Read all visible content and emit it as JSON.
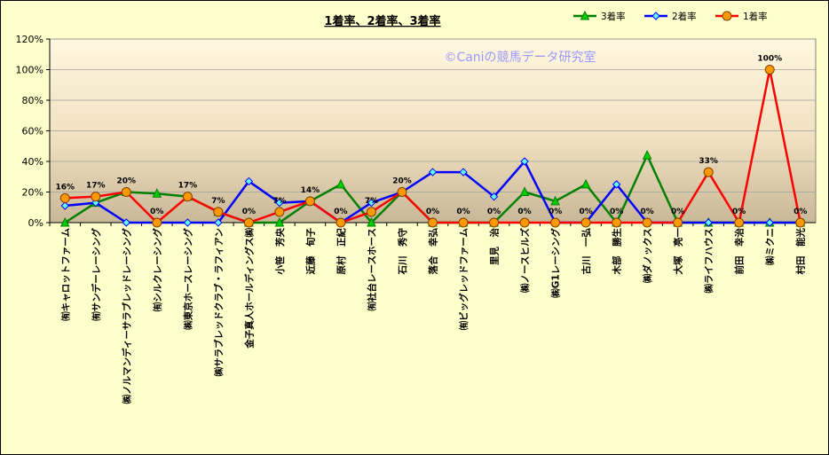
{
  "chart_data": {
    "type": "line",
    "title": "1着率、2着率、3着率",
    "watermark": "©Caniの競馬データ研究室",
    "ylim": [
      0,
      120
    ],
    "yticks": [
      0,
      20,
      40,
      60,
      80,
      100,
      120
    ],
    "ytick_suffix": "%",
    "grid": true,
    "legend_position": "top-right",
    "categories": [
      "㈲キャロットファーム",
      "㈲サンデーレーシング",
      "㈱ノルマンディーサラブレッドレーシング",
      "㈲シルクレーシング",
      "㈱東京ホースレーシング",
      "㈱サラブレッドクラブ・ラフィアン",
      "金子真人ホールディングス㈱",
      "小笹　芳央",
      "近藤　旬子",
      "原村　正紀",
      "㈲社台レースホース",
      "石川　秀守",
      "落合　幸弘",
      "㈲ビッグレッドファーム",
      "里見　治",
      "㈱ノースヒルズ",
      "㈱G1レーシング",
      "古川　一弘",
      "木部　勝生",
      "㈱ダノックス",
      "大塚　亮一",
      "㈱ライフハウス",
      "前田　幸治",
      "㈱ミクニ",
      "村田　能光"
    ],
    "series": [
      {
        "name": "3着率",
        "color": "#008000",
        "marker": "triangle",
        "marker_fill": "#00cc00",
        "values": [
          0,
          13,
          20,
          19,
          17,
          7,
          0,
          0,
          14,
          25,
          0,
          20,
          0,
          0,
          0,
          20,
          14,
          25,
          0,
          44,
          0,
          0,
          0,
          0,
          0
        ]
      },
      {
        "name": "2着率",
        "color": "#0000ff",
        "marker": "diamond",
        "marker_fill": "#66ffff",
        "values": [
          11,
          13,
          0,
          0,
          0,
          0,
          27,
          13,
          14,
          0,
          13,
          20,
          33,
          33,
          17,
          40,
          0,
          0,
          25,
          0,
          0,
          0,
          0,
          0,
          0
        ]
      },
      {
        "name": "1着率",
        "color": "#ff0000",
        "marker": "circle",
        "marker_fill": "#ff9900",
        "values": [
          16,
          17,
          20,
          0,
          17,
          7,
          0,
          7,
          14,
          0,
          7,
          20,
          0,
          0,
          0,
          0,
          0,
          0,
          0,
          0,
          0,
          33,
          0,
          100,
          0
        ],
        "data_labels": [
          "16%",
          "17%",
          "20%",
          "0%",
          "17%",
          "7%",
          "0%",
          "7%",
          "14%",
          "0%",
          "7%",
          "20%",
          "0%",
          "0%",
          "0%",
          "0%",
          "0%",
          "0%",
          "0%",
          "0%",
          "0%",
          "33%",
          "0%",
          "100%",
          "0%"
        ]
      }
    ]
  }
}
